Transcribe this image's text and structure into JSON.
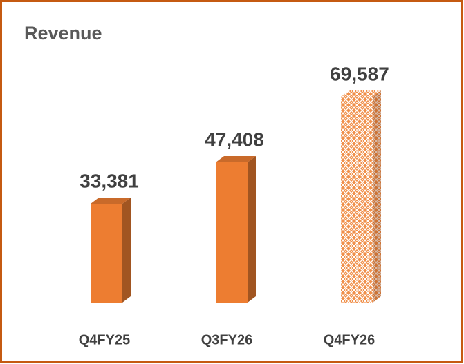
{
  "chart_data": {
    "type": "bar3d",
    "title": "Revenue",
    "categories": [
      "Q4FY25",
      "Q3FY26",
      "Q4FY26"
    ],
    "values": [
      33381,
      47408,
      69587
    ],
    "value_labels": [
      "33,381",
      "47,408",
      "69,587"
    ],
    "color": "#ed7d31",
    "fill_styles": [
      "solid",
      "solid",
      "lattice"
    ]
  }
}
